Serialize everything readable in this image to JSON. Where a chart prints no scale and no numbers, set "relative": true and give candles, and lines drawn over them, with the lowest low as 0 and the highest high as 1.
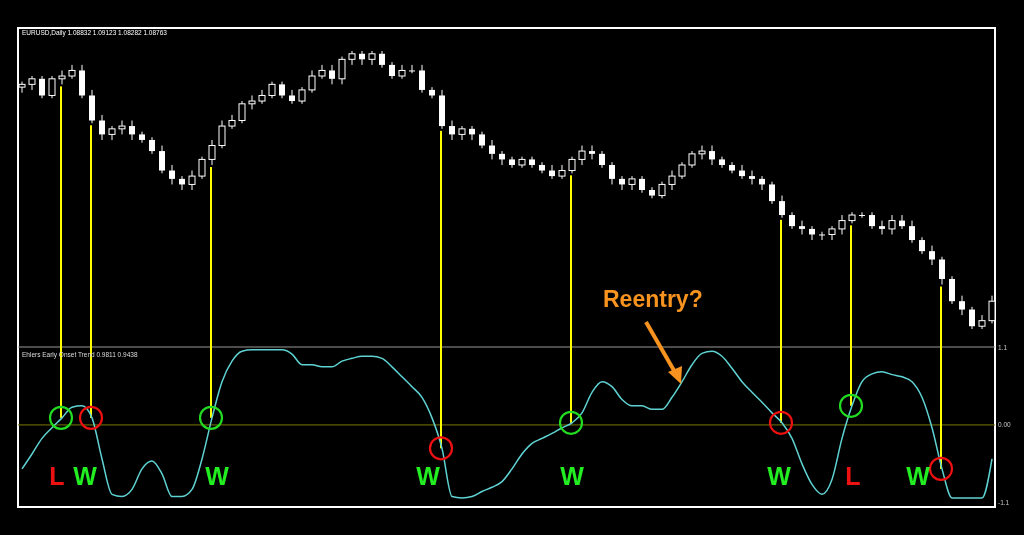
{
  "chart_data": [
    {
      "type": "candlestick",
      "relative": true,
      "color": "#ffffff",
      "annotations": [
        "EURUSD,Daily 1.08832 1.09123 1.08282 1.08763",
        "Reentry?"
      ],
      "categories": [
        null,
        null,
        null,
        null,
        null,
        null,
        null,
        null,
        null,
        null,
        null,
        null,
        null,
        null,
        null,
        null,
        null,
        null,
        null,
        null,
        null,
        null,
        null,
        null,
        null,
        null,
        null,
        null,
        null,
        null,
        null,
        null,
        null,
        null,
        null,
        null,
        null,
        null,
        null,
        null,
        null,
        null,
        null,
        null,
        null,
        null,
        null,
        null,
        null,
        null,
        null,
        null,
        null,
        null,
        null,
        null,
        null,
        null,
        null,
        null,
        null,
        null,
        null,
        null,
        null,
        null,
        null,
        null,
        null,
        null,
        null,
        null,
        null,
        null,
        null,
        null,
        null,
        null,
        null,
        null,
        null,
        null,
        null,
        null,
        null,
        null,
        null,
        null,
        null,
        null,
        null,
        null,
        null,
        null,
        null,
        null,
        null,
        null
      ],
      "ohlc": [
        [
          0.87,
          0.89,
          0.85,
          0.88
        ],
        [
          0.88,
          0.91,
          0.86,
          0.9
        ],
        [
          0.9,
          0.91,
          0.83,
          0.84
        ],
        [
          0.84,
          0.91,
          0.83,
          0.9
        ],
        [
          0.9,
          0.93,
          0.88,
          0.91
        ],
        [
          0.91,
          0.95,
          0.9,
          0.93
        ],
        [
          0.93,
          0.95,
          0.83,
          0.84
        ],
        [
          0.84,
          0.86,
          0.74,
          0.75
        ],
        [
          0.75,
          0.77,
          0.68,
          0.7
        ],
        [
          0.7,
          0.73,
          0.68,
          0.72
        ],
        [
          0.72,
          0.75,
          0.7,
          0.73
        ],
        [
          0.73,
          0.75,
          0.68,
          0.7
        ],
        [
          0.7,
          0.71,
          0.67,
          0.68
        ],
        [
          0.68,
          0.69,
          0.63,
          0.64
        ],
        [
          0.64,
          0.66,
          0.56,
          0.57
        ],
        [
          0.57,
          0.59,
          0.52,
          0.54
        ],
        [
          0.54,
          0.55,
          0.5,
          0.52
        ],
        [
          0.52,
          0.57,
          0.5,
          0.55
        ],
        [
          0.55,
          0.62,
          0.54,
          0.61
        ],
        [
          0.61,
          0.68,
          0.59,
          0.66
        ],
        [
          0.66,
          0.75,
          0.65,
          0.73
        ],
        [
          0.73,
          0.77,
          0.72,
          0.75
        ],
        [
          0.75,
          0.82,
          0.74,
          0.81
        ],
        [
          0.81,
          0.84,
          0.79,
          0.82
        ],
        [
          0.82,
          0.86,
          0.81,
          0.84
        ],
        [
          0.84,
          0.89,
          0.83,
          0.88
        ],
        [
          0.88,
          0.89,
          0.83,
          0.84
        ],
        [
          0.84,
          0.86,
          0.81,
          0.82
        ],
        [
          0.82,
          0.87,
          0.81,
          0.86
        ],
        [
          0.86,
          0.93,
          0.85,
          0.91
        ],
        [
          0.91,
          0.95,
          0.9,
          0.93
        ],
        [
          0.93,
          0.95,
          0.88,
          0.9
        ],
        [
          0.9,
          0.98,
          0.88,
          0.97
        ],
        [
          0.97,
          1.0,
          0.95,
          0.99
        ],
        [
          0.99,
          1.0,
          0.95,
          0.97
        ],
        [
          0.97,
          1.0,
          0.95,
          0.99
        ],
        [
          0.99,
          1.0,
          0.94,
          0.95
        ],
        [
          0.95,
          0.96,
          0.9,
          0.91
        ],
        [
          0.91,
          0.95,
          0.9,
          0.93
        ],
        [
          0.93,
          0.95,
          0.92,
          0.93
        ],
        [
          0.93,
          0.95,
          0.85,
          0.86
        ],
        [
          0.86,
          0.87,
          0.83,
          0.84
        ],
        [
          0.84,
          0.86,
          0.72,
          0.73
        ],
        [
          0.73,
          0.75,
          0.68,
          0.7
        ],
        [
          0.7,
          0.73,
          0.68,
          0.72
        ],
        [
          0.72,
          0.73,
          0.68,
          0.7
        ],
        [
          0.7,
          0.71,
          0.65,
          0.66
        ],
        [
          0.66,
          0.68,
          0.61,
          0.63
        ],
        [
          0.63,
          0.64,
          0.59,
          0.61
        ],
        [
          0.61,
          0.62,
          0.58,
          0.59
        ],
        [
          0.59,
          0.62,
          0.58,
          0.61
        ],
        [
          0.61,
          0.62,
          0.58,
          0.59
        ],
        [
          0.59,
          0.6,
          0.56,
          0.57
        ],
        [
          0.57,
          0.59,
          0.54,
          0.55
        ],
        [
          0.55,
          0.59,
          0.54,
          0.57
        ],
        [
          0.57,
          0.62,
          0.56,
          0.61
        ],
        [
          0.61,
          0.66,
          0.59,
          0.64
        ],
        [
          0.64,
          0.66,
          0.61,
          0.63
        ],
        [
          0.63,
          0.64,
          0.58,
          0.59
        ],
        [
          0.59,
          0.6,
          0.52,
          0.54
        ],
        [
          0.54,
          0.55,
          0.5,
          0.52
        ],
        [
          0.52,
          0.55,
          0.5,
          0.54
        ],
        [
          0.54,
          0.55,
          0.49,
          0.5
        ],
        [
          0.5,
          0.51,
          0.47,
          0.48
        ],
        [
          0.48,
          0.53,
          0.47,
          0.52
        ],
        [
          0.52,
          0.57,
          0.5,
          0.55
        ],
        [
          0.55,
          0.6,
          0.54,
          0.59
        ],
        [
          0.59,
          0.64,
          0.58,
          0.63
        ],
        [
          0.63,
          0.66,
          0.61,
          0.64
        ],
        [
          0.64,
          0.66,
          0.59,
          0.61
        ],
        [
          0.61,
          0.62,
          0.58,
          0.59
        ],
        [
          0.59,
          0.6,
          0.56,
          0.57
        ],
        [
          0.57,
          0.59,
          0.54,
          0.55
        ],
        [
          0.55,
          0.57,
          0.52,
          0.54
        ],
        [
          0.54,
          0.55,
          0.5,
          0.52
        ],
        [
          0.52,
          0.53,
          0.45,
          0.46
        ],
        [
          0.46,
          0.48,
          0.4,
          0.41
        ],
        [
          0.41,
          0.42,
          0.36,
          0.37
        ],
        [
          0.37,
          0.39,
          0.34,
          0.36
        ],
        [
          0.36,
          0.37,
          0.32,
          0.34
        ],
        [
          0.34,
          0.35,
          0.32,
          0.34
        ],
        [
          0.34,
          0.37,
          0.32,
          0.36
        ],
        [
          0.36,
          0.41,
          0.34,
          0.39
        ],
        [
          0.39,
          0.42,
          0.38,
          0.41
        ],
        [
          0.41,
          0.42,
          0.4,
          0.41
        ],
        [
          0.41,
          0.42,
          0.36,
          0.37
        ],
        [
          0.37,
          0.39,
          0.34,
          0.36
        ],
        [
          0.36,
          0.41,
          0.34,
          0.39
        ],
        [
          0.39,
          0.41,
          0.36,
          0.37
        ],
        [
          0.37,
          0.39,
          0.31,
          0.32
        ],
        [
          0.32,
          0.33,
          0.27,
          0.28
        ],
        [
          0.28,
          0.3,
          0.23,
          0.25
        ],
        [
          0.25,
          0.26,
          0.16,
          0.18
        ],
        [
          0.18,
          0.19,
          0.09,
          0.1
        ],
        [
          0.1,
          0.12,
          0.05,
          0.07
        ],
        [
          0.07,
          0.08,
          0.0,
          0.01
        ],
        [
          0.01,
          0.05,
          0.0,
          0.03
        ],
        [
          0.03,
          0.12,
          0.02,
          0.1
        ]
      ]
    },
    {
      "type": "line",
      "annotations": [
        "Ehlers Early Onset Trend 0.9811 0.9438",
        "L",
        "W",
        "W",
        "W",
        "W",
        "W",
        "L",
        "W"
      ],
      "tick_labels": "y",
      "ylim": [
        -1.13,
        1.1
      ],
      "yticks": [
        {
          "value": 1.1,
          "label": "1.1"
        },
        {
          "value": 0,
          "label": "0.00"
        },
        {
          "value": -1.1,
          "label": "-1.1"
        }
      ],
      "ref_lines": [
        {
          "axis": "y",
          "value": 1.1,
          "color": "#9a9a9a"
        },
        {
          "axis": "y",
          "value": 0,
          "color": "#7a7a00"
        }
      ],
      "categories": [
        null,
        null,
        null,
        null,
        null,
        null,
        null,
        null,
        null,
        null,
        null,
        null,
        null,
        null,
        null,
        null,
        null,
        null,
        null,
        null,
        null,
        null,
        null,
        null,
        null,
        null,
        null,
        null,
        null,
        null,
        null,
        null,
        null,
        null,
        null,
        null,
        null,
        null,
        null,
        null,
        null,
        null,
        null,
        null,
        null,
        null,
        null,
        null,
        null,
        null,
        null,
        null,
        null,
        null,
        null,
        null,
        null,
        null,
        null,
        null,
        null,
        null,
        null,
        null,
        null,
        null,
        null,
        null,
        null,
        null,
        null,
        null,
        null,
        null,
        null,
        null,
        null,
        null,
        null,
        null,
        null,
        null,
        null,
        null,
        null,
        null,
        null,
        null,
        null,
        null,
        null,
        null,
        null,
        null,
        null,
        null,
        null,
        null
      ],
      "series": [
        {
          "color": "#5fd3d3",
          "values": [
            -0.62,
            -0.41,
            -0.19,
            -0.04,
            0.1,
            0.25,
            0.27,
            0.1,
            -0.48,
            -0.98,
            -1.01,
            -0.91,
            -0.62,
            -0.51,
            -0.69,
            -1.01,
            -1.01,
            -0.91,
            -0.48,
            0.1,
            0.61,
            0.9,
            1.04,
            1.06,
            1.06,
            1.06,
            1.06,
            1.0,
            0.85,
            0.85,
            0.82,
            0.82,
            0.9,
            0.94,
            0.97,
            0.97,
            0.94,
            0.82,
            0.68,
            0.54,
            0.39,
            0.1,
            -0.33,
            -1.01,
            -1.03,
            -1.01,
            -0.94,
            -0.88,
            -0.8,
            -0.62,
            -0.41,
            -0.26,
            -0.19,
            -0.12,
            -0.04,
            0.03,
            0.17,
            0.46,
            0.61,
            0.54,
            0.36,
            0.27,
            0.27,
            0.22,
            0.22,
            0.39,
            0.61,
            0.85,
            1.01,
            1.04,
            0.97,
            0.8,
            0.61,
            0.46,
            0.32,
            0.17,
            0.03,
            -0.19,
            -0.55,
            -0.84,
            -0.98,
            -0.77,
            -0.19,
            0.27,
            0.61,
            0.72,
            0.75,
            0.71,
            0.68,
            0.61,
            0.39,
            -0.04,
            -0.62,
            -1.03,
            -1.03,
            -1.03,
            -1.03,
            -0.48
          ]
        }
      ]
    }
  ]
}
